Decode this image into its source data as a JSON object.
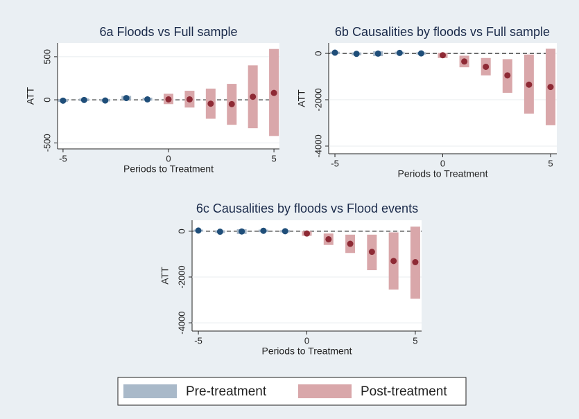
{
  "chart_data": [
    {
      "type": "event",
      "title": "6a  Floods vs Full sample",
      "xlabel": "Periods to Treatment",
      "ylabel": "ATT",
      "xlim": [
        -5.26,
        5.26
      ],
      "xticks": [
        -5,
        0,
        5
      ],
      "ylim": [
        -570,
        660
      ],
      "yticks": [
        -500,
        0,
        500
      ],
      "hline": 0,
      "series": [
        {
          "name": "Pre-treatment",
          "color": "#1f4e79",
          "ci_color": "#a9b9c9",
          "x": [
            -5,
            -4,
            -3,
            -2,
            -1
          ],
          "values": [
            -10,
            -2,
            -8,
            20,
            5
          ],
          "ci_low": [
            -25,
            -15,
            -20,
            0,
            -10
          ],
          "ci_high": [
            10,
            15,
            10,
            45,
            25
          ]
        },
        {
          "name": "Post-treatment",
          "color": "#8e2a35",
          "ci_color": "#d9a7aa",
          "x": [
            0,
            1,
            2,
            3,
            4,
            5
          ],
          "values": [
            5,
            5,
            -45,
            -50,
            35,
            80
          ],
          "ci_low": [
            -50,
            -90,
            -220,
            -290,
            -330,
            -420
          ],
          "ci_high": [
            70,
            105,
            130,
            185,
            400,
            590
          ]
        }
      ]
    },
    {
      "type": "event",
      "title": "6b  Causalities by floods vs Full sample",
      "xlabel": "Periods to Treatment",
      "ylabel": "ATT",
      "xlim": [
        -5.29,
        5.29
      ],
      "xticks": [
        -5,
        0,
        5
      ],
      "ylim": [
        -4330,
        450
      ],
      "yticks": [
        -4000,
        -2000,
        0
      ],
      "hline": 0,
      "series": [
        {
          "name": "Pre-treatment",
          "color": "#1f4e79",
          "ci_color": "#a9b9c9",
          "x": [
            -5,
            -4,
            -3,
            -2,
            -1
          ],
          "values": [
            30,
            -20,
            -10,
            20,
            0
          ],
          "ci_low": [
            -20,
            -80,
            -120,
            -40,
            -50
          ],
          "ci_high": [
            70,
            40,
            90,
            70,
            50
          ]
        },
        {
          "name": "Post-treatment",
          "color": "#8e2a35",
          "ci_color": "#d9a7aa",
          "x": [
            0,
            1,
            2,
            3,
            4,
            5
          ],
          "values": [
            -80,
            -350,
            -580,
            -950,
            -1350,
            -1450
          ],
          "ci_low": [
            -200,
            -600,
            -950,
            -1700,
            -2600,
            -3100
          ],
          "ci_high": [
            20,
            -100,
            -200,
            -250,
            -50,
            200
          ]
        }
      ]
    },
    {
      "type": "event",
      "title": "6c  Causalities by floods vs Flood events",
      "xlabel": "Periods to Treatment",
      "ylabel": "ATT",
      "xlim": [
        -5.29,
        5.29
      ],
      "xticks": [
        -5,
        0,
        5
      ],
      "ylim": [
        -4360,
        480
      ],
      "yticks": [
        -4000,
        -2000,
        0
      ],
      "hline": 0,
      "series": [
        {
          "name": "Pre-treatment",
          "color": "#1f4e79",
          "ci_color": "#a9b9c9",
          "x": [
            -5,
            -4,
            -3,
            -2,
            -1
          ],
          "values": [
            30,
            -20,
            -10,
            20,
            0
          ],
          "ci_low": [
            -20,
            -80,
            -120,
            -40,
            -50
          ],
          "ci_high": [
            70,
            40,
            90,
            70,
            50
          ]
        },
        {
          "name": "Post-treatment",
          "color": "#8e2a35",
          "ci_color": "#d9a7aa",
          "x": [
            0,
            1,
            2,
            3,
            4,
            5
          ],
          "values": [
            -100,
            -350,
            -550,
            -900,
            -1300,
            -1350
          ],
          "ci_low": [
            -200,
            -600,
            -950,
            -1700,
            -2550,
            -2950
          ],
          "ci_high": [
            0,
            -100,
            -150,
            -150,
            -50,
            200
          ]
        }
      ]
    }
  ]
}
